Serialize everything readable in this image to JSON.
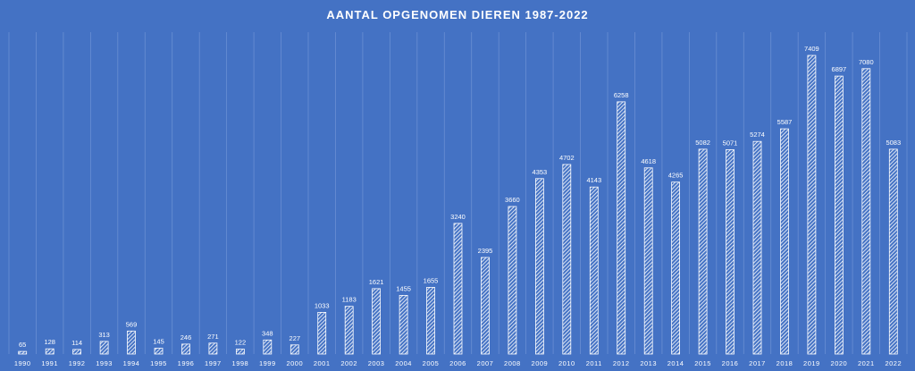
{
  "chart_data": {
    "type": "bar",
    "title": "AANTAL OPGENOMEN DIEREN 1987-2022",
    "categories": [
      "1990",
      "1991",
      "1992",
      "1993",
      "1994",
      "1995",
      "1996",
      "1997",
      "1998",
      "1999",
      "2000",
      "2001",
      "2002",
      "2003",
      "2004",
      "2005",
      "2006",
      "2007",
      "2008",
      "2009",
      "2010",
      "2011",
      "2012",
      "2013",
      "2014",
      "2015",
      "2016",
      "2017",
      "2018",
      "2019",
      "2020",
      "2021",
      "2022"
    ],
    "values": [
      65,
      128,
      114,
      313,
      569,
      145,
      246,
      271,
      122,
      348,
      227,
      1033,
      1183,
      1621,
      1455,
      1655,
      3240,
      2395,
      3660,
      4353,
      4702,
      4143,
      6258,
      4618,
      4265,
      5082,
      5071,
      5274,
      5587,
      7409,
      6897,
      7080,
      5083
    ],
    "xlabel": "",
    "ylabel": "",
    "ylim": [
      0,
      7409
    ],
    "grid": "vertical",
    "legend": "none",
    "colors": {
      "background": "#4472c4",
      "bar_stroke": "#ffffff",
      "bar_hatch": "#ffffff",
      "text": "#ffffff",
      "gridline": "#6a8fd3"
    }
  }
}
